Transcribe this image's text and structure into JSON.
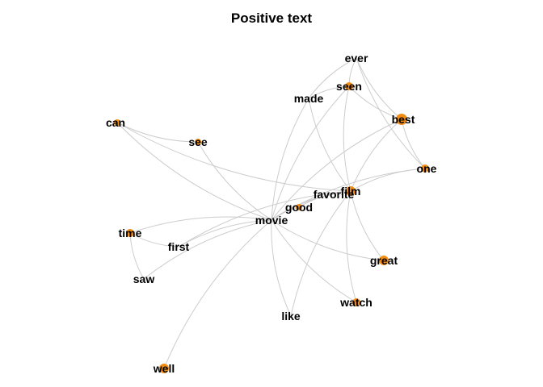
{
  "title": "Positive text",
  "colors": {
    "node": "#F28E16",
    "edge": "#cccccc",
    "label": "#000000",
    "background": "#ffffff"
  },
  "nodes": [
    {
      "id": "ever",
      "label": "ever",
      "size": 0
    },
    {
      "id": "seen",
      "label": "seen",
      "size": 5
    },
    {
      "id": "made",
      "label": "made",
      "size": 0
    },
    {
      "id": "best",
      "label": "best",
      "size": 7
    },
    {
      "id": "can",
      "label": "can",
      "size": 4
    },
    {
      "id": "see",
      "label": "see",
      "size": 4
    },
    {
      "id": "one",
      "label": "one",
      "size": 5
    },
    {
      "id": "film",
      "label": "film",
      "size": 6
    },
    {
      "id": "favorite",
      "label": "favorite",
      "size": 0
    },
    {
      "id": "good",
      "label": "good",
      "size": 4
    },
    {
      "id": "movie",
      "label": "movie",
      "size": 0
    },
    {
      "id": "time",
      "label": "time",
      "size": 5
    },
    {
      "id": "first",
      "label": "first",
      "size": 0
    },
    {
      "id": "saw",
      "label": "saw",
      "size": 0
    },
    {
      "id": "great",
      "label": "great",
      "size": 6
    },
    {
      "id": "watch",
      "label": "watch",
      "size": 5
    },
    {
      "id": "like",
      "label": "like",
      "size": 0
    },
    {
      "id": "well",
      "label": "well",
      "size": 6
    }
  ],
  "edges": [
    [
      "ever",
      "seen"
    ],
    [
      "ever",
      "made"
    ],
    [
      "ever",
      "best"
    ],
    [
      "ever",
      "one"
    ],
    [
      "seen",
      "made"
    ],
    [
      "seen",
      "best"
    ],
    [
      "seen",
      "film"
    ],
    [
      "seen",
      "movie"
    ],
    [
      "made",
      "film"
    ],
    [
      "made",
      "movie"
    ],
    [
      "best",
      "one"
    ],
    [
      "best",
      "film"
    ],
    [
      "best",
      "movie"
    ],
    [
      "can",
      "see"
    ],
    [
      "can",
      "film"
    ],
    [
      "can",
      "movie"
    ],
    [
      "see",
      "movie"
    ],
    [
      "one",
      "film"
    ],
    [
      "one",
      "movie"
    ],
    [
      "film",
      "good"
    ],
    [
      "film",
      "great"
    ],
    [
      "film",
      "watch"
    ],
    [
      "film",
      "like"
    ],
    [
      "film",
      "first"
    ],
    [
      "film",
      "movie"
    ],
    [
      "favorite",
      "movie"
    ],
    [
      "good",
      "movie"
    ],
    [
      "movie",
      "time"
    ],
    [
      "movie",
      "first"
    ],
    [
      "movie",
      "saw"
    ],
    [
      "movie",
      "great"
    ],
    [
      "movie",
      "watch"
    ],
    [
      "movie",
      "like"
    ],
    [
      "movie",
      "well"
    ],
    [
      "time",
      "first"
    ],
    [
      "time",
      "saw"
    ]
  ]
}
